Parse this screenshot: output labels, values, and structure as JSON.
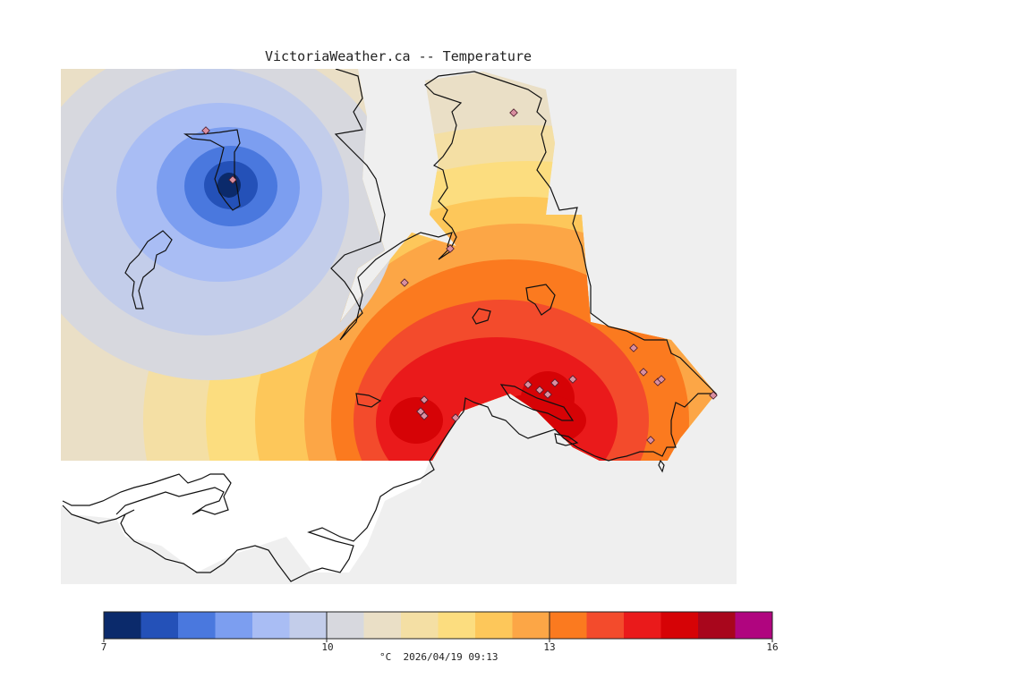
{
  "title": "VictoriaWeather.ca -- Temperature",
  "legend": {
    "colors": [
      "#0b2a6b",
      "#2451b8",
      "#4a78de",
      "#7c9ef0",
      "#a9bdf4",
      "#c3cdea",
      "#d7d8de",
      "#eadfc6",
      "#f4dfa4",
      "#fcdd7f",
      "#fdc75a",
      "#fca646",
      "#fb7a1f",
      "#f34b2c",
      "#ea1a1b",
      "#d60306",
      "#a8061c",
      "#b0057f"
    ],
    "ticks": [
      "7",
      "10",
      "13",
      "16"
    ],
    "units": "°C",
    "timestamp": "2026/04/19 09:13"
  },
  "station_count": 20
}
